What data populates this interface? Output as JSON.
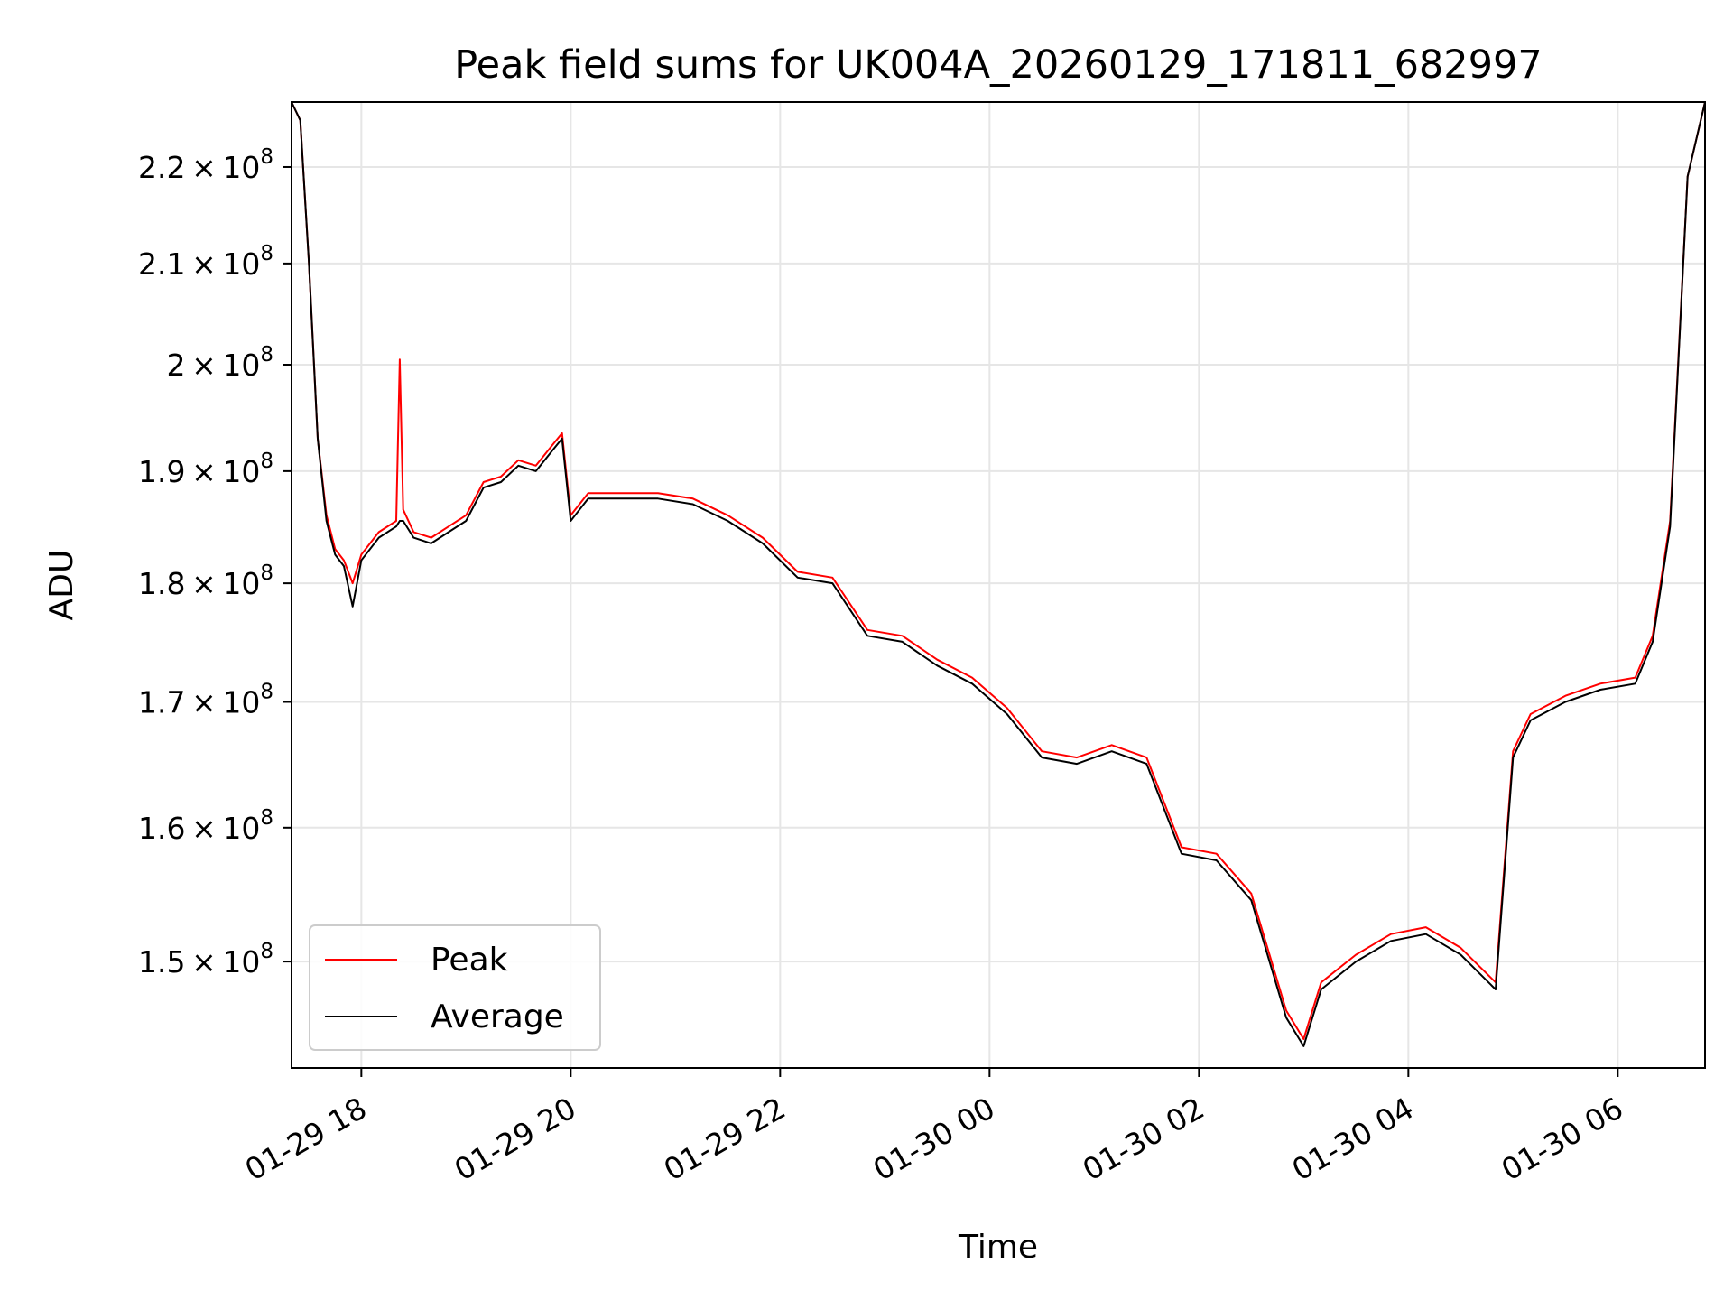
{
  "chart_data": {
    "type": "line",
    "title": "Peak field sums for UK004A_20260129_171811_682997",
    "xlabel": "Time",
    "ylabel": "ADU",
    "x_is_time": true,
    "y_scale": "log",
    "grid": true,
    "legend_position": "lower-left",
    "xlim": [
      "2026-01-29 17:20",
      "2026-01-30 06:50"
    ],
    "ylim": [
      142500000,
      227000000
    ],
    "x_ticks": [
      "01-29 18",
      "01-29 20",
      "01-29 22",
      "01-30 00",
      "01-30 02",
      "01-30 04",
      "01-30 06"
    ],
    "x_tick_values": [
      "2026-01-29 18:00",
      "2026-01-29 20:00",
      "2026-01-29 22:00",
      "2026-01-30 00:00",
      "2026-01-30 02:00",
      "2026-01-30 04:00",
      "2026-01-30 06:00"
    ],
    "y_ticks": [
      {
        "mantissa": "1.5",
        "exponent": "8",
        "value": 150000000
      },
      {
        "mantissa": "1.6",
        "exponent": "8",
        "value": 160000000
      },
      {
        "mantissa": "1.7",
        "exponent": "8",
        "value": 170000000
      },
      {
        "mantissa": "1.8",
        "exponent": "8",
        "value": 180000000
      },
      {
        "mantissa": "1.9",
        "exponent": "8",
        "value": 190000000
      },
      {
        "mantissa": "2",
        "exponent": "8",
        "value": 200000000
      },
      {
        "mantissa": "2.1",
        "exponent": "8",
        "value": 210000000
      },
      {
        "mantissa": "2.2",
        "exponent": "8",
        "value": 220000000
      }
    ],
    "times_symbol": "×",
    "base_label": "10",
    "series": [
      {
        "name": "Peak",
        "color": "#ff0000",
        "x": [
          "2026-01-29 17:20",
          "2026-01-29 17:25",
          "2026-01-29 17:30",
          "2026-01-29 17:35",
          "2026-01-29 17:40",
          "2026-01-29 17:45",
          "2026-01-29 17:50",
          "2026-01-29 17:55",
          "2026-01-29 18:00",
          "2026-01-29 18:10",
          "2026-01-29 18:20",
          "2026-01-29 18:22",
          "2026-01-29 18:24",
          "2026-01-29 18:30",
          "2026-01-29 18:40",
          "2026-01-29 18:50",
          "2026-01-29 19:00",
          "2026-01-29 19:10",
          "2026-01-29 19:20",
          "2026-01-29 19:30",
          "2026-01-29 19:40",
          "2026-01-29 19:50",
          "2026-01-29 19:55",
          "2026-01-29 20:00",
          "2026-01-29 20:10",
          "2026-01-29 20:30",
          "2026-01-29 20:50",
          "2026-01-29 21:10",
          "2026-01-29 21:30",
          "2026-01-29 21:50",
          "2026-01-29 22:10",
          "2026-01-29 22:30",
          "2026-01-29 22:50",
          "2026-01-29 23:10",
          "2026-01-29 23:30",
          "2026-01-29 23:50",
          "2026-01-30 00:10",
          "2026-01-30 00:30",
          "2026-01-30 00:50",
          "2026-01-30 01:10",
          "2026-01-30 01:30",
          "2026-01-30 01:50",
          "2026-01-30 02:10",
          "2026-01-30 02:30",
          "2026-01-30 02:50",
          "2026-01-30 03:00",
          "2026-01-30 03:10",
          "2026-01-30 03:30",
          "2026-01-30 03:50",
          "2026-01-30 04:10",
          "2026-01-30 04:30",
          "2026-01-30 04:50",
          "2026-01-30 05:00",
          "2026-01-30 05:10",
          "2026-01-30 05:30",
          "2026-01-30 05:50",
          "2026-01-30 06:10",
          "2026-01-30 06:20",
          "2026-01-30 06:30",
          "2026-01-30 06:40",
          "2026-01-30 06:50"
        ],
        "values": [
          227000000,
          225000000,
          210000000,
          193000000,
          186000000,
          183000000,
          182000000,
          180000000,
          182500000,
          184500000,
          185500000,
          200500000,
          186500000,
          184500000,
          184000000,
          185000000,
          186000000,
          189000000,
          189500000,
          191000000,
          190500000,
          192500000,
          193500000,
          186000000,
          188000000,
          188000000,
          188000000,
          187500000,
          186000000,
          184000000,
          181000000,
          180500000,
          176000000,
          175500000,
          173500000,
          172000000,
          169500000,
          166000000,
          165500000,
          166500000,
          165500000,
          158500000,
          158000000,
          155000000,
          146500000,
          144500000,
          148500000,
          150500000,
          152000000,
          152500000,
          151000000,
          148500000,
          166000000,
          169000000,
          170500000,
          171500000,
          172000000,
          175500000,
          185500000,
          219000000,
          227000000
        ]
      },
      {
        "name": "Average",
        "color": "#000000",
        "x": [
          "2026-01-29 17:20",
          "2026-01-29 17:25",
          "2026-01-29 17:30",
          "2026-01-29 17:35",
          "2026-01-29 17:40",
          "2026-01-29 17:45",
          "2026-01-29 17:50",
          "2026-01-29 17:55",
          "2026-01-29 18:00",
          "2026-01-29 18:10",
          "2026-01-29 18:20",
          "2026-01-29 18:22",
          "2026-01-29 18:24",
          "2026-01-29 18:30",
          "2026-01-29 18:40",
          "2026-01-29 18:50",
          "2026-01-29 19:00",
          "2026-01-29 19:10",
          "2026-01-29 19:20",
          "2026-01-29 19:30",
          "2026-01-29 19:40",
          "2026-01-29 19:50",
          "2026-01-29 19:55",
          "2026-01-29 20:00",
          "2026-01-29 20:10",
          "2026-01-29 20:30",
          "2026-01-29 20:50",
          "2026-01-29 21:10",
          "2026-01-29 21:30",
          "2026-01-29 21:50",
          "2026-01-29 22:10",
          "2026-01-29 22:30",
          "2026-01-29 22:50",
          "2026-01-29 23:10",
          "2026-01-29 23:30",
          "2026-01-29 23:50",
          "2026-01-30 00:10",
          "2026-01-30 00:30",
          "2026-01-30 00:50",
          "2026-01-30 01:10",
          "2026-01-30 01:30",
          "2026-01-30 01:50",
          "2026-01-30 02:10",
          "2026-01-30 02:30",
          "2026-01-30 02:50",
          "2026-01-30 03:00",
          "2026-01-30 03:10",
          "2026-01-30 03:30",
          "2026-01-30 03:50",
          "2026-01-30 04:10",
          "2026-01-30 04:30",
          "2026-01-30 04:50",
          "2026-01-30 05:00",
          "2026-01-30 05:10",
          "2026-01-30 05:30",
          "2026-01-30 05:50",
          "2026-01-30 06:10",
          "2026-01-30 06:20",
          "2026-01-30 06:30",
          "2026-01-30 06:40",
          "2026-01-30 06:50"
        ],
        "values": [
          227000000,
          225000000,
          210000000,
          193000000,
          185500000,
          182500000,
          181500000,
          178000000,
          182000000,
          184000000,
          185000000,
          185500000,
          185500000,
          184000000,
          183500000,
          184500000,
          185500000,
          188500000,
          189000000,
          190500000,
          190000000,
          192000000,
          193000000,
          185500000,
          187500000,
          187500000,
          187500000,
          187000000,
          185500000,
          183500000,
          180500000,
          180000000,
          175500000,
          175000000,
          173000000,
          171500000,
          169000000,
          165500000,
          165000000,
          166000000,
          165000000,
          158000000,
          157500000,
          154500000,
          146000000,
          144000000,
          148000000,
          150000000,
          151500000,
          152000000,
          150500000,
          148000000,
          165500000,
          168500000,
          170000000,
          171000000,
          171500000,
          175000000,
          185000000,
          219000000,
          227000000
        ]
      }
    ]
  }
}
